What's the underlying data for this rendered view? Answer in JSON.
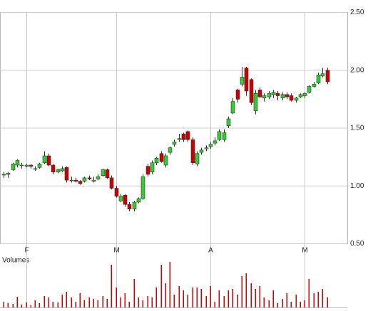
{
  "chart_data": {
    "type": "candlestick",
    "categories": [
      null,
      null,
      null,
      null,
      null,
      "F",
      null,
      null,
      null,
      null,
      null,
      null,
      null,
      null,
      null,
      null,
      null,
      null,
      null,
      null,
      null,
      null,
      null,
      null,
      null,
      "M",
      null,
      null,
      null,
      null,
      null,
      null,
      null,
      null,
      null,
      null,
      null,
      null,
      null,
      null,
      null,
      null,
      null,
      null,
      null,
      null,
      "A",
      null,
      null,
      null,
      null,
      null,
      null,
      null,
      null,
      null,
      null,
      null,
      null,
      null,
      null,
      null,
      null,
      null,
      null,
      null,
      null,
      "M",
      null,
      null,
      null,
      null,
      null
    ],
    "open": [
      1.1,
      1.1,
      1.14,
      1.18,
      1.18,
      1.17,
      1.18,
      1.15,
      1.16,
      1.2,
      1.26,
      1.18,
      1.12,
      1.13,
      1.16,
      1.05,
      1.05,
      1.04,
      1.04,
      1.07,
      1.04,
      1.06,
      1.09,
      1.14,
      1.07,
      0.98,
      0.87,
      0.92,
      0.84,
      0.8,
      0.86,
      0.89,
      1.17,
      1.12,
      1.2,
      1.28,
      1.18,
      1.29,
      1.36,
      1.4,
      1.45,
      1.47,
      1.4,
      1.19,
      1.29,
      1.32,
      1.34,
      1.37,
      1.4,
      1.4,
      1.52,
      1.63,
      1.83,
      1.88,
      2.02,
      1.92,
      1.65,
      1.83,
      1.76,
      1.77,
      1.79,
      1.8,
      1.76,
      1.79,
      1.78,
      1.74,
      1.77,
      1.78,
      1.81,
      1.86,
      1.89,
      1.95,
      2.0
    ],
    "high": [
      1.12,
      1.12,
      1.2,
      1.23,
      1.2,
      1.19,
      1.19,
      1.17,
      1.2,
      1.3,
      1.28,
      1.19,
      1.15,
      1.17,
      1.17,
      1.08,
      1.07,
      1.05,
      1.08,
      1.09,
      1.08,
      1.1,
      1.15,
      1.15,
      1.09,
      1.0,
      0.93,
      0.93,
      0.86,
      0.87,
      0.9,
      1.1,
      1.19,
      1.22,
      1.25,
      1.3,
      1.28,
      1.34,
      1.4,
      1.45,
      1.46,
      1.48,
      1.42,
      1.3,
      1.33,
      1.35,
      1.38,
      1.42,
      1.49,
      1.49,
      1.6,
      1.76,
      1.84,
      2.03,
      2.03,
      1.93,
      1.83,
      1.85,
      1.8,
      1.82,
      1.83,
      1.82,
      1.81,
      1.81,
      1.8,
      1.77,
      1.8,
      1.81,
      1.87,
      1.9,
      1.98,
      2.02,
      2.02
    ],
    "low": [
      1.07,
      1.07,
      1.13,
      1.16,
      1.15,
      1.16,
      1.15,
      1.13,
      1.15,
      1.19,
      1.17,
      1.1,
      1.11,
      1.12,
      1.03,
      1.03,
      1.03,
      1.01,
      1.03,
      1.05,
      1.03,
      1.05,
      1.08,
      1.06,
      0.97,
      0.9,
      0.86,
      0.82,
      0.78,
      0.78,
      0.85,
      0.88,
      1.08,
      1.1,
      1.18,
      1.2,
      1.16,
      1.27,
      1.34,
      1.38,
      1.38,
      1.38,
      1.18,
      1.17,
      1.27,
      1.3,
      1.32,
      1.35,
      1.39,
      1.38,
      1.5,
      1.62,
      1.72,
      1.86,
      1.78,
      1.7,
      1.62,
      1.76,
      1.73,
      1.75,
      1.76,
      1.74,
      1.74,
      1.75,
      1.73,
      1.72,
      1.76,
      1.76,
      1.8,
      1.85,
      1.88,
      1.94,
      1.88
    ],
    "close": [
      1.1,
      1.11,
      1.19,
      1.22,
      1.18,
      1.18,
      1.17,
      1.15,
      1.19,
      1.26,
      1.18,
      1.12,
      1.14,
      1.15,
      1.05,
      1.05,
      1.04,
      1.02,
      1.07,
      1.06,
      1.05,
      1.08,
      1.14,
      1.07,
      0.98,
      0.91,
      0.91,
      0.84,
      0.8,
      0.86,
      0.89,
      1.08,
      1.1,
      1.2,
      1.24,
      1.21,
      1.26,
      1.33,
      1.38,
      1.41,
      1.4,
      1.4,
      1.2,
      1.28,
      1.31,
      1.33,
      1.36,
      1.39,
      1.47,
      1.46,
      1.58,
      1.73,
      1.75,
      1.94,
      1.82,
      1.72,
      1.8,
      1.77,
      1.78,
      1.8,
      1.81,
      1.78,
      1.79,
      1.77,
      1.74,
      1.76,
      1.79,
      1.8,
      1.86,
      1.88,
      1.96,
      1.97,
      1.9
    ],
    "volume_title": "Volumes",
    "volumes": [
      8,
      6,
      5,
      15,
      4,
      7,
      3,
      10,
      6,
      16,
      14,
      8,
      7,
      18,
      22,
      14,
      8,
      20,
      10,
      14,
      12,
      10,
      16,
      12,
      60,
      28,
      14,
      20,
      8,
      40,
      14,
      10,
      16,
      14,
      28,
      60,
      34,
      64,
      18,
      30,
      24,
      18,
      28,
      28,
      26,
      16,
      30,
      8,
      24,
      16,
      24,
      26,
      18,
      44,
      48,
      34,
      26,
      30,
      14,
      10,
      24,
      6,
      12,
      20,
      8,
      18,
      8,
      10,
      40,
      20,
      22,
      26,
      14
    ],
    "up_color": "#33cc33",
    "down_color": "#cc0000",
    "volume_color": "#cc0000",
    "ylim": [
      0.5,
      2.5
    ],
    "yticks": [
      {
        "value": 0.5,
        "label": "0.50"
      },
      {
        "value": 1,
        "label": "1.00"
      },
      {
        "value": 1.5,
        "label": "1.50"
      },
      {
        "value": 2,
        "label": "2.00"
      },
      {
        "value": 2.5,
        "label": "2.50"
      }
    ],
    "grid": true
  }
}
